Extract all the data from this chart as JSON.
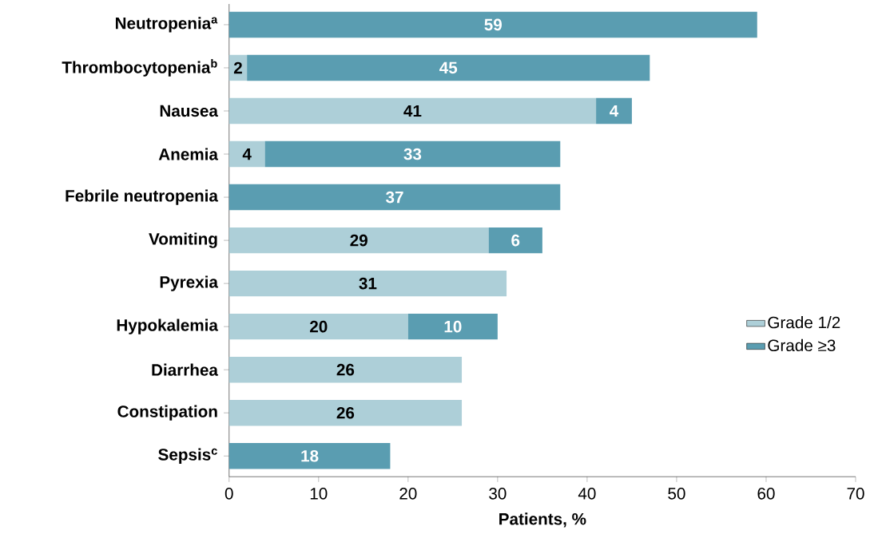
{
  "chart_data": {
    "type": "bar",
    "orientation": "horizontal",
    "stacked": true,
    "categories": [
      "Neutropenia$^{a}$",
      "Thrombocytopenia$^{b}$",
      "Nausea",
      "Anemia",
      "Febrile neutropenia",
      "Vomiting",
      "Pyrexia",
      "Hypokalemia",
      "Diarrhea",
      "Constipation",
      "Sepsis$^{c}$"
    ],
    "series": [
      {
        "name": "Grade 1/2",
        "color": "#adcfd8",
        "values": [
          null,
          2,
          41,
          4,
          null,
          29,
          31,
          20,
          26,
          26,
          null
        ]
      },
      {
        "name": "Grade ≥3",
        "color": "#5a9db1",
        "values": [
          59,
          45,
          4,
          33,
          37,
          6,
          null,
          10,
          null,
          null,
          18
        ]
      }
    ],
    "xlabel": "Patients, %",
    "xlim": [
      0,
      70
    ],
    "xticks": [
      0,
      10,
      20,
      30,
      40,
      50,
      60,
      70
    ],
    "data_labels": true,
    "legend": "right",
    "grid": false
  }
}
